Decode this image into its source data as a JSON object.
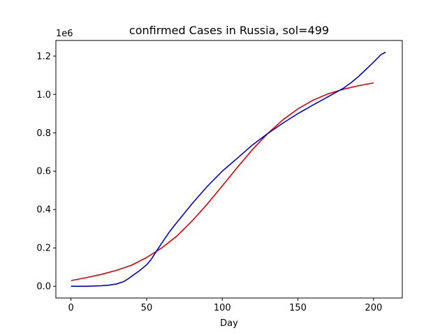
{
  "chart_data": {
    "type": "line",
    "title": "confirmed Cases in Russia, sol=499",
    "xlabel": "Day",
    "ylabel": "",
    "y_offset_label": "1e6",
    "xlim": [
      -10,
      219
    ],
    "ylim": [
      -0.061,
      1.281
    ],
    "x_ticks": [
      0,
      50,
      100,
      150,
      200
    ],
    "x_tick_labels": [
      "0",
      "50",
      "100",
      "150",
      "200"
    ],
    "y_ticks": [
      0.0,
      0.2,
      0.4,
      0.6,
      0.8,
      1.0,
      1.2
    ],
    "y_tick_labels": [
      "0.0",
      "0.2",
      "0.4",
      "0.6",
      "0.8",
      "1.0",
      "1.2"
    ],
    "grid": false,
    "series": [
      {
        "color": "#dd0000",
        "x": [
          0,
          10,
          20,
          30,
          40,
          50,
          60,
          70,
          80,
          90,
          100,
          110,
          120,
          130,
          140,
          150,
          160,
          170,
          180,
          190,
          200
        ],
        "y": [
          0.03,
          0.045,
          0.062,
          0.083,
          0.11,
          0.15,
          0.2,
          0.262,
          0.34,
          0.428,
          0.523,
          0.62,
          0.713,
          0.796,
          0.867,
          0.925,
          0.97,
          1.003,
          1.027,
          1.045,
          1.06
        ]
      },
      {
        "color": "#0000cc",
        "x": [
          0,
          10,
          20,
          25,
          30,
          35,
          38,
          40,
          45,
          50,
          53,
          55,
          60,
          65,
          70,
          80,
          90,
          100,
          110,
          120,
          130,
          140,
          150,
          160,
          170,
          180,
          185,
          190,
          195,
          200,
          205,
          208
        ],
        "y": [
          0.0,
          0.0,
          0.003,
          0.006,
          0.012,
          0.025,
          0.04,
          0.052,
          0.08,
          0.112,
          0.14,
          0.165,
          0.225,
          0.283,
          0.333,
          0.43,
          0.52,
          0.6,
          0.668,
          0.737,
          0.796,
          0.85,
          0.9,
          0.945,
          0.988,
          1.032,
          1.06,
          1.093,
          1.13,
          1.168,
          1.208,
          1.22
        ]
      }
    ]
  }
}
